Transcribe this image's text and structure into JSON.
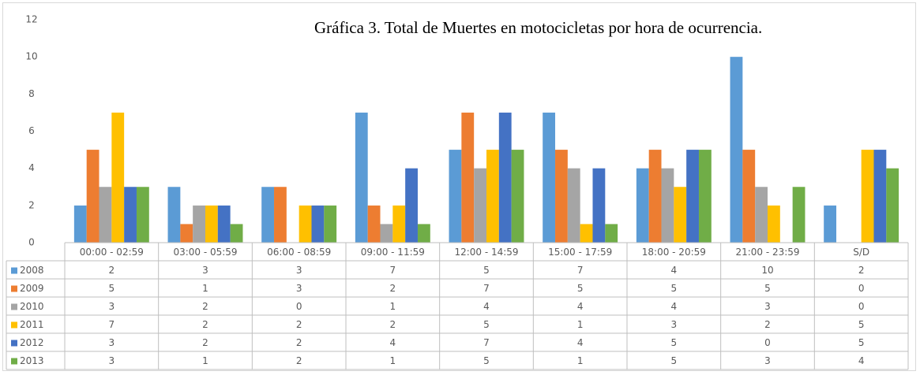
{
  "chart_data": {
    "type": "bar",
    "title": "Gráfica 3. Total de Muertes en motocicletas por hora de ocurrencia.",
    "categories": [
      "00:00 - 02:59",
      "03:00 - 05:59",
      "06:00 - 08:59",
      "09:00 - 11:59",
      "12:00 - 14:59",
      "15:00 - 17:59",
      "18:00 - 20:59",
      "21:00 - 23:59",
      "S/D"
    ],
    "series": [
      {
        "name": "2008",
        "color": "#5b9bd5",
        "values": [
          2,
          3,
          3,
          7,
          5,
          7,
          4,
          10,
          2
        ]
      },
      {
        "name": "2009",
        "color": "#ed7d31",
        "values": [
          5,
          1,
          3,
          2,
          7,
          5,
          5,
          5,
          0
        ]
      },
      {
        "name": "2010",
        "color": "#a5a5a5",
        "values": [
          3,
          2,
          0,
          1,
          4,
          4,
          4,
          3,
          0
        ]
      },
      {
        "name": "2011",
        "color": "#ffc000",
        "values": [
          7,
          2,
          2,
          2,
          5,
          1,
          3,
          2,
          5
        ]
      },
      {
        "name": "2012",
        "color": "#4472c4",
        "values": [
          3,
          2,
          2,
          4,
          7,
          4,
          5,
          0,
          5
        ]
      },
      {
        "name": "2013",
        "color": "#70ad47",
        "values": [
          3,
          1,
          2,
          1,
          5,
          1,
          5,
          3,
          4
        ]
      }
    ],
    "ylim": [
      0,
      12
    ],
    "yticks": [
      0,
      2,
      4,
      6,
      8,
      10,
      12
    ],
    "grid": false
  }
}
